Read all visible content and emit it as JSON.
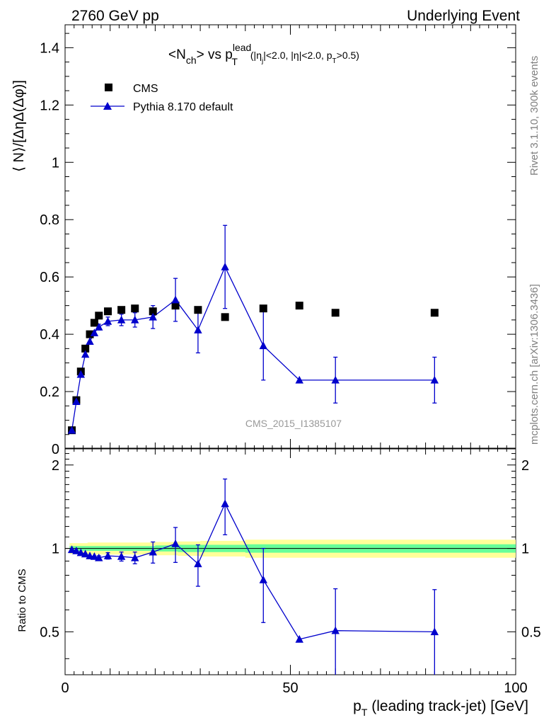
{
  "header": {
    "left": "2760 GeV pp",
    "right": "Underlying Event"
  },
  "side_labels": {
    "rivet": "Rivet 3.1.10,  300k events",
    "mcplots": "mcplots.cern.ch [arXiv:1306.3436]"
  },
  "watermark": "CMS_2015_I1385107",
  "formula": {
    "part1": "<N",
    "sub_ch": "ch",
    "part2": "> vs p",
    "sup_lead": "lead",
    "sub_T": "T",
    "cuts_a": "(|η",
    "sub_j": "j",
    "cuts_b": "|<2.0, |η|<2.0, p",
    "sub_T2": "T",
    "cuts_c": ">0.5)"
  },
  "legend": {
    "cms": "CMS",
    "pythia": "Pythia 8.170 default"
  },
  "axes": {
    "main_ylabel": "⟨ N⟩/[ΔηΔ(Δφ)]",
    "ratio_ylabel": "Ratio to CMS",
    "xlabel_p": "p",
    "xlabel_sub": "T",
    "xlabel_rest": " (leading track-jet) [GeV]"
  },
  "chart_data": [
    {
      "type": "scatter",
      "panel": "main",
      "x_unit": "GeV",
      "xlim": [
        0,
        100
      ],
      "ylim": [
        0,
        1.48
      ],
      "yticks": [
        0,
        0.2,
        0.4,
        0.6,
        0.8,
        1,
        1.2,
        1.4
      ],
      "ytick_labels": [
        "0",
        "0.2",
        "0.4",
        "0.6",
        "0.8",
        "1",
        "1.2",
        "1.4"
      ],
      "series": [
        {
          "name": "CMS",
          "marker": "square",
          "color": "#000000",
          "x": [
            1.5,
            2.5,
            3.5,
            4.5,
            5.5,
            6.5,
            7.5,
            9.5,
            12.5,
            15.5,
            19.5,
            24.5,
            29.5,
            35.5,
            44,
            52,
            60,
            82
          ],
          "y": [
            0.065,
            0.17,
            0.27,
            0.35,
            0.4,
            0.44,
            0.465,
            0.48,
            0.485,
            0.49,
            0.48,
            0.5,
            0.485,
            0.46,
            0.49,
            0.5,
            0.475,
            0.475
          ]
        },
        {
          "name": "Pythia 8.170 default",
          "marker": "triangle",
          "color": "#0000cc",
          "x": [
            1.5,
            2.5,
            3.5,
            4.5,
            5.5,
            6.5,
            7.5,
            9.5,
            12.5,
            15.5,
            19.5,
            24.5,
            29.5,
            35.5,
            44,
            52,
            60,
            82
          ],
          "y": [
            0.065,
            0.165,
            0.26,
            0.33,
            0.375,
            0.405,
            0.425,
            0.445,
            0.45,
            0.45,
            0.46,
            0.52,
            0.415,
            0.635,
            0.36,
            0.24,
            0.24,
            0.24
          ],
          "yerr": [
            0,
            0,
            0,
            0,
            0,
            0,
            0.01,
            0.015,
            0.02,
            0.025,
            0.04,
            0.075,
            0.08,
            0.145,
            0.12,
            0,
            0.08,
            0.08
          ]
        }
      ]
    },
    {
      "type": "scatter",
      "panel": "ratio",
      "x_unit": "GeV",
      "xlim": [
        0,
        100
      ],
      "ylim": [
        0.35,
        2.3
      ],
      "yticks": [
        0.5,
        1,
        2
      ],
      "ytick_labels": [
        "0.5",
        "1",
        "2"
      ],
      "xticks": [
        0,
        50,
        100
      ],
      "xtick_labels": [
        "0",
        "50",
        "100"
      ],
      "reference": 1,
      "bands": {
        "green_halfwidth": [
          0.02,
          0.02,
          0.02,
          0.025,
          0.03,
          0.03,
          0.035,
          0.035,
          0.035
        ],
        "yellow_halfwidth": [
          0.045,
          0.05,
          0.05,
          0.055,
          0.06,
          0.065,
          0.075,
          0.075,
          0.075
        ],
        "band_x": [
          1,
          5,
          10,
          20,
          25,
          30,
          40,
          65,
          100
        ],
        "green_color": "#66ff99",
        "yellow_color": "#ffff99"
      },
      "series": [
        {
          "name": "Pythia 8.170 default",
          "color": "#0000cc",
          "x": [
            1.5,
            2.5,
            3.5,
            4.5,
            5.5,
            6.5,
            7.5,
            9.5,
            12.5,
            15.5,
            19.5,
            24.5,
            29.5,
            35.5,
            44,
            52,
            60,
            82
          ],
          "y": [
            0.99,
            0.98,
            0.965,
            0.955,
            0.94,
            0.935,
            0.925,
            0.94,
            0.935,
            0.925,
            0.97,
            1.04,
            0.88,
            1.45,
            0.77,
            0.47,
            0.505,
            0.5
          ],
          "yerr": [
            0,
            0,
            0,
            0,
            0,
            0,
            0.015,
            0.025,
            0.035,
            0.045,
            0.085,
            0.15,
            0.15,
            0.33,
            0.23,
            0,
            0.21,
            0.21
          ]
        }
      ]
    }
  ]
}
